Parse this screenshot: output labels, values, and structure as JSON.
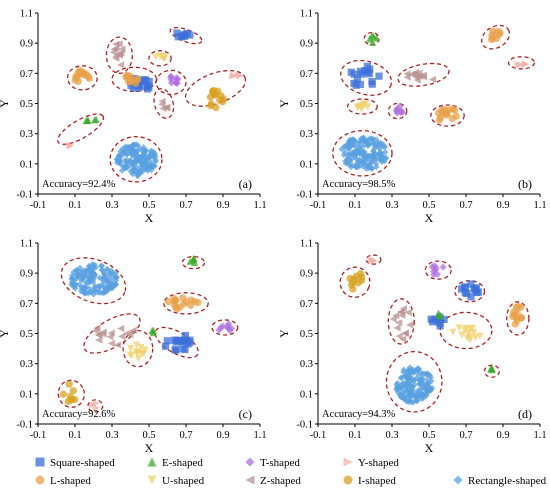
{
  "chart_data": [
    {
      "type": "scatter",
      "panel_label": "(a)",
      "annotation": "Accuracy=92.4%",
      "xlabel": "X",
      "ylabel": "Y",
      "xlim": [
        -0.1,
        1.1
      ],
      "ylim": [
        -0.1,
        1.1
      ],
      "xticks": [
        "-0.1",
        "0.1",
        "0.3",
        "0.5",
        "0.7",
        "0.9",
        "1.1"
      ],
      "yticks": [
        "-0.1",
        "0.1",
        "0.3",
        "0.5",
        "0.7",
        "0.9",
        "1.1"
      ],
      "clusters": [
        {
          "series": "Rectangle-shaped",
          "cx": 0.43,
          "cy": 0.13,
          "rx": 0.11,
          "ry": 0.11,
          "n": 160
        },
        {
          "series": "Square-shaped",
          "cx": 0.68,
          "cy": 0.96,
          "rx": 0.05,
          "ry": 0.02,
          "n": 8
        },
        {
          "series": "Square-shaped",
          "cx": 0.45,
          "cy": 0.63,
          "rx": 0.06,
          "ry": 0.05,
          "n": 18
        },
        {
          "series": "L-shaped",
          "cx": 0.13,
          "cy": 0.67,
          "rx": 0.05,
          "ry": 0.05,
          "n": 14
        },
        {
          "series": "L-shaped",
          "cx": 0.4,
          "cy": 0.66,
          "rx": 0.05,
          "ry": 0.04,
          "n": 10
        },
        {
          "series": "E-shaped",
          "cx": 0.18,
          "cy": 0.4,
          "rx": 0.04,
          "ry": 0.02,
          "n": 5
        },
        {
          "series": "T-shaped",
          "cx": 0.63,
          "cy": 0.66,
          "rx": 0.04,
          "ry": 0.04,
          "n": 10
        },
        {
          "series": "U-shaped",
          "cx": 0.56,
          "cy": 0.8,
          "rx": 0.03,
          "ry": 0.02,
          "n": 7
        },
        {
          "series": "Z-shaped",
          "cx": 0.33,
          "cy": 0.82,
          "rx": 0.03,
          "ry": 0.08,
          "n": 12
        },
        {
          "series": "Z-shaped",
          "cx": 0.58,
          "cy": 0.48,
          "rx": 0.02,
          "ry": 0.04,
          "n": 5
        },
        {
          "series": "Y-shaped",
          "cx": 0.97,
          "cy": 0.68,
          "rx": 0.03,
          "ry": 0.01,
          "n": 4
        },
        {
          "series": "Y-shaped",
          "cx": 0.07,
          "cy": 0.22,
          "rx": 0.01,
          "ry": 0.01,
          "n": 2
        },
        {
          "series": "I-shaped",
          "cx": 0.86,
          "cy": 0.53,
          "rx": 0.05,
          "ry": 0.06,
          "n": 14
        }
      ],
      "ellipses": [
        {
          "cx": 0.43,
          "cy": 0.13,
          "rx": 0.14,
          "ry": 0.15,
          "angle": 0
        },
        {
          "cx": 0.7,
          "cy": 0.95,
          "rx": 0.09,
          "ry": 0.04,
          "angle": -20
        },
        {
          "cx": 0.42,
          "cy": 0.66,
          "rx": 0.12,
          "ry": 0.08,
          "angle": 0
        },
        {
          "cx": 0.14,
          "cy": 0.67,
          "rx": 0.08,
          "ry": 0.08,
          "angle": 0
        },
        {
          "cx": 0.13,
          "cy": 0.33,
          "rx": 0.14,
          "ry": 0.06,
          "angle": 30
        },
        {
          "cx": 0.62,
          "cy": 0.64,
          "rx": 0.08,
          "ry": 0.08,
          "angle": 0
        },
        {
          "cx": 0.56,
          "cy": 0.8,
          "rx": 0.06,
          "ry": 0.05,
          "angle": 0
        },
        {
          "cx": 0.34,
          "cy": 0.82,
          "rx": 0.07,
          "ry": 0.12,
          "angle": 0
        },
        {
          "cx": 0.58,
          "cy": 0.5,
          "rx": 0.05,
          "ry": 0.1,
          "angle": 15
        },
        {
          "cx": 0.86,
          "cy": 0.6,
          "rx": 0.17,
          "ry": 0.1,
          "angle": 20
        }
      ]
    },
    {
      "type": "scatter",
      "panel_label": "(b)",
      "annotation": "Accuracy=98.5%",
      "xlabel": "X",
      "ylabel": "Y",
      "xlim": [
        -0.1,
        1.1
      ],
      "ylim": [
        -0.1,
        1.1
      ],
      "xticks": [
        "-0.1",
        "0.1",
        "0.3",
        "0.5",
        "0.7",
        "0.9",
        "1.1"
      ],
      "yticks": [
        "-0.1",
        "0.1",
        "0.3",
        "0.5",
        "0.7",
        "0.9",
        "1.1"
      ],
      "clusters": [
        {
          "series": "Rectangle-shaped",
          "cx": 0.15,
          "cy": 0.17,
          "rx": 0.13,
          "ry": 0.11,
          "n": 160
        },
        {
          "series": "Square-shaped",
          "cx": 0.15,
          "cy": 0.68,
          "rx": 0.09,
          "ry": 0.07,
          "n": 16
        },
        {
          "series": "L-shaped",
          "cx": 0.6,
          "cy": 0.42,
          "rx": 0.06,
          "ry": 0.05,
          "n": 14
        },
        {
          "series": "L-shaped",
          "cx": 0.86,
          "cy": 0.95,
          "rx": 0.03,
          "ry": 0.04,
          "n": 8
        },
        {
          "series": "E-shaped",
          "cx": 0.19,
          "cy": 0.93,
          "rx": 0.03,
          "ry": 0.03,
          "n": 5
        },
        {
          "series": "T-shaped",
          "cx": 0.34,
          "cy": 0.46,
          "rx": 0.03,
          "ry": 0.03,
          "n": 8
        },
        {
          "series": "U-shaped",
          "cx": 0.14,
          "cy": 0.48,
          "rx": 0.05,
          "ry": 0.02,
          "n": 8
        },
        {
          "series": "Z-shaped",
          "cx": 0.45,
          "cy": 0.68,
          "rx": 0.1,
          "ry": 0.04,
          "n": 12
        },
        {
          "series": "Y-shaped",
          "cx": 1.0,
          "cy": 0.77,
          "rx": 0.03,
          "ry": 0.02,
          "n": 4
        }
      ],
      "ellipses": [
        {
          "cx": 0.14,
          "cy": 0.17,
          "rx": 0.16,
          "ry": 0.15,
          "angle": 0
        },
        {
          "cx": 0.16,
          "cy": 0.67,
          "rx": 0.14,
          "ry": 0.11,
          "angle": -15
        },
        {
          "cx": 0.6,
          "cy": 0.42,
          "rx": 0.09,
          "ry": 0.07,
          "angle": 0
        },
        {
          "cx": 0.86,
          "cy": 0.94,
          "rx": 0.08,
          "ry": 0.07,
          "angle": 30
        },
        {
          "cx": 0.19,
          "cy": 0.93,
          "rx": 0.04,
          "ry": 0.04,
          "angle": 0
        },
        {
          "cx": 0.33,
          "cy": 0.45,
          "rx": 0.05,
          "ry": 0.05,
          "angle": 0
        },
        {
          "cx": 0.14,
          "cy": 0.48,
          "rx": 0.08,
          "ry": 0.05,
          "angle": 0
        },
        {
          "cx": 0.47,
          "cy": 0.69,
          "rx": 0.14,
          "ry": 0.07,
          "angle": 10
        },
        {
          "cx": 1.0,
          "cy": 0.77,
          "rx": 0.07,
          "ry": 0.04,
          "angle": 0
        }
      ]
    },
    {
      "type": "scatter",
      "panel_label": "(c)",
      "annotation": "Accuracy=92.6%",
      "xlabel": "X",
      "ylabel": "Y",
      "xlim": [
        -0.1,
        1.1
      ],
      "ylim": [
        -0.1,
        1.1
      ],
      "xticks": [
        "-0.1",
        "0.1",
        "0.3",
        "0.5",
        "0.7",
        "0.9",
        "1.1"
      ],
      "yticks": [
        "-0.1",
        "0.1",
        "0.3",
        "0.5",
        "0.7",
        "0.9",
        "1.1"
      ],
      "clusters": [
        {
          "series": "Rectangle-shaped",
          "cx": 0.2,
          "cy": 0.86,
          "rx": 0.13,
          "ry": 0.1,
          "n": 150
        },
        {
          "series": "Square-shaped",
          "cx": 0.65,
          "cy": 0.44,
          "rx": 0.08,
          "ry": 0.06,
          "n": 18
        },
        {
          "series": "L-shaped",
          "cx": 0.68,
          "cy": 0.7,
          "rx": 0.09,
          "ry": 0.04,
          "n": 16
        },
        {
          "series": "I-shaped",
          "cx": 0.08,
          "cy": 0.1,
          "rx": 0.05,
          "ry": 0.07,
          "n": 8
        },
        {
          "series": "E-shaped",
          "cx": 0.74,
          "cy": 0.98,
          "rx": 0.03,
          "ry": 0.02,
          "n": 5
        },
        {
          "series": "E-shaped",
          "cx": 0.52,
          "cy": 0.52,
          "rx": 0.01,
          "ry": 0.02,
          "n": 3
        },
        {
          "series": "T-shaped",
          "cx": 0.91,
          "cy": 0.54,
          "rx": 0.04,
          "ry": 0.03,
          "n": 9
        },
        {
          "series": "U-shaped",
          "cx": 0.44,
          "cy": 0.38,
          "rx": 0.05,
          "ry": 0.06,
          "n": 12
        },
        {
          "series": "Z-shaped",
          "cx": 0.3,
          "cy": 0.5,
          "rx": 0.12,
          "ry": 0.08,
          "n": 16
        },
        {
          "series": "Y-shaped",
          "cx": 0.21,
          "cy": 0.02,
          "rx": 0.02,
          "ry": 0.02,
          "n": 3
        }
      ],
      "ellipses": [
        {
          "cx": 0.2,
          "cy": 0.85,
          "rx": 0.18,
          "ry": 0.14,
          "angle": -20
        },
        {
          "cx": 0.65,
          "cy": 0.44,
          "rx": 0.13,
          "ry": 0.07,
          "angle": -30
        },
        {
          "cx": 0.7,
          "cy": 0.7,
          "rx": 0.12,
          "ry": 0.07,
          "angle": 0
        },
        {
          "cx": 0.08,
          "cy": 0.1,
          "rx": 0.07,
          "ry": 0.09,
          "angle": 20
        },
        {
          "cx": 0.74,
          "cy": 0.97,
          "rx": 0.06,
          "ry": 0.04,
          "angle": 0
        },
        {
          "cx": 0.91,
          "cy": 0.54,
          "rx": 0.07,
          "ry": 0.05,
          "angle": 0
        },
        {
          "cx": 0.44,
          "cy": 0.4,
          "rx": 0.08,
          "ry": 0.12,
          "angle": 0
        },
        {
          "cx": 0.3,
          "cy": 0.5,
          "rx": 0.17,
          "ry": 0.09,
          "angle": 30
        },
        {
          "cx": 0.21,
          "cy": 0.02,
          "rx": 0.04,
          "ry": 0.04,
          "angle": 0
        }
      ]
    },
    {
      "type": "scatter",
      "panel_label": "(d)",
      "annotation": "Accuracy=94.3%",
      "xlabel": "X",
      "ylabel": "Y",
      "xlim": [
        -0.1,
        1.1
      ],
      "ylim": [
        -0.1,
        1.1
      ],
      "xticks": [
        "-0.1",
        "0.1",
        "0.3",
        "0.5",
        "0.7",
        "0.9",
        "1.1"
      ],
      "yticks": [
        "-0.1",
        "0.1",
        "0.3",
        "0.5",
        "0.7",
        "0.9",
        "1.1"
      ],
      "clusters": [
        {
          "series": "Rectangle-shaped",
          "cx": 0.42,
          "cy": 0.16,
          "rx": 0.1,
          "ry": 0.12,
          "n": 160
        },
        {
          "series": "Square-shaped",
          "cx": 0.72,
          "cy": 0.78,
          "rx": 0.05,
          "ry": 0.05,
          "n": 12
        },
        {
          "series": "Square-shaped",
          "cx": 0.55,
          "cy": 0.58,
          "rx": 0.05,
          "ry": 0.04,
          "n": 8
        },
        {
          "series": "I-shaped",
          "cx": 0.1,
          "cy": 0.85,
          "rx": 0.05,
          "ry": 0.06,
          "n": 10
        },
        {
          "series": "L-shaped",
          "cx": 0.98,
          "cy": 0.62,
          "rx": 0.03,
          "ry": 0.07,
          "n": 12
        },
        {
          "series": "E-shaped",
          "cx": 0.84,
          "cy": 0.25,
          "rx": 0.02,
          "ry": 0.02,
          "n": 4
        },
        {
          "series": "E-shaped",
          "cx": 0.55,
          "cy": 0.62,
          "rx": 0.01,
          "ry": 0.02,
          "n": 3
        },
        {
          "series": "T-shaped",
          "cx": 0.55,
          "cy": 0.92,
          "rx": 0.04,
          "ry": 0.04,
          "n": 8
        },
        {
          "series": "U-shaped",
          "cx": 0.7,
          "cy": 0.5,
          "rx": 0.1,
          "ry": 0.05,
          "n": 14
        },
        {
          "series": "Z-shaped",
          "cx": 0.35,
          "cy": 0.58,
          "rx": 0.05,
          "ry": 0.12,
          "n": 14
        },
        {
          "series": "Y-shaped",
          "cx": 0.2,
          "cy": 0.99,
          "rx": 0.02,
          "ry": 0.01,
          "n": 3
        }
      ],
      "ellipses": [
        {
          "cx": 0.42,
          "cy": 0.18,
          "rx": 0.15,
          "ry": 0.2,
          "angle": 0
        },
        {
          "cx": 0.72,
          "cy": 0.78,
          "rx": 0.08,
          "ry": 0.07,
          "angle": 0
        },
        {
          "cx": 0.1,
          "cy": 0.84,
          "rx": 0.08,
          "ry": 0.1,
          "angle": -20
        },
        {
          "cx": 0.98,
          "cy": 0.6,
          "rx": 0.06,
          "ry": 0.11,
          "angle": 0
        },
        {
          "cx": 0.84,
          "cy": 0.25,
          "rx": 0.04,
          "ry": 0.04,
          "angle": 0
        },
        {
          "cx": 0.55,
          "cy": 0.92,
          "rx": 0.07,
          "ry": 0.06,
          "angle": 0
        },
        {
          "cx": 0.7,
          "cy": 0.52,
          "rx": 0.14,
          "ry": 0.12,
          "angle": 0
        },
        {
          "cx": 0.35,
          "cy": 0.58,
          "rx": 0.07,
          "ry": 0.15,
          "angle": 0
        },
        {
          "cx": 0.2,
          "cy": 0.99,
          "rx": 0.04,
          "ry": 0.03,
          "angle": 0
        }
      ]
    }
  ],
  "legend": {
    "items": [
      {
        "label": "Square-shaped",
        "marker": "square",
        "color": "#3b6fd8"
      },
      {
        "label": "L-shaped",
        "marker": "circle",
        "color": "#e8a048"
      },
      {
        "label": "E-shaped",
        "marker": "triangle-up",
        "color": "#3aaa2a"
      },
      {
        "label": "U-shaped",
        "marker": "triangle-down",
        "color": "#f0d068"
      },
      {
        "label": "T-shaped",
        "marker": "diamond",
        "color": "#b070e0"
      },
      {
        "label": "Z-shaped",
        "marker": "triangle-left",
        "color": "#b89090"
      },
      {
        "label": "Y-shaped",
        "marker": "triangle-right",
        "color": "#f0b0a8"
      },
      {
        "label": "I-shaped",
        "marker": "hexagon",
        "color": "#d8a020"
      },
      {
        "label": "Rectangle-shaped",
        "marker": "diamond",
        "color": "#5aa0e0"
      }
    ]
  },
  "colors": {
    "ellipse": "#b02020",
    "Square-shaped": "#3b6fd8",
    "L-shaped": "#e8a048",
    "E-shaped": "#3aaa2a",
    "U-shaped": "#f0d068",
    "T-shaped": "#b070e0",
    "Z-shaped": "#b89090",
    "Y-shaped": "#f0b0a8",
    "I-shaped": "#d8a020",
    "Rectangle-shaped": "#5aa0e0"
  }
}
